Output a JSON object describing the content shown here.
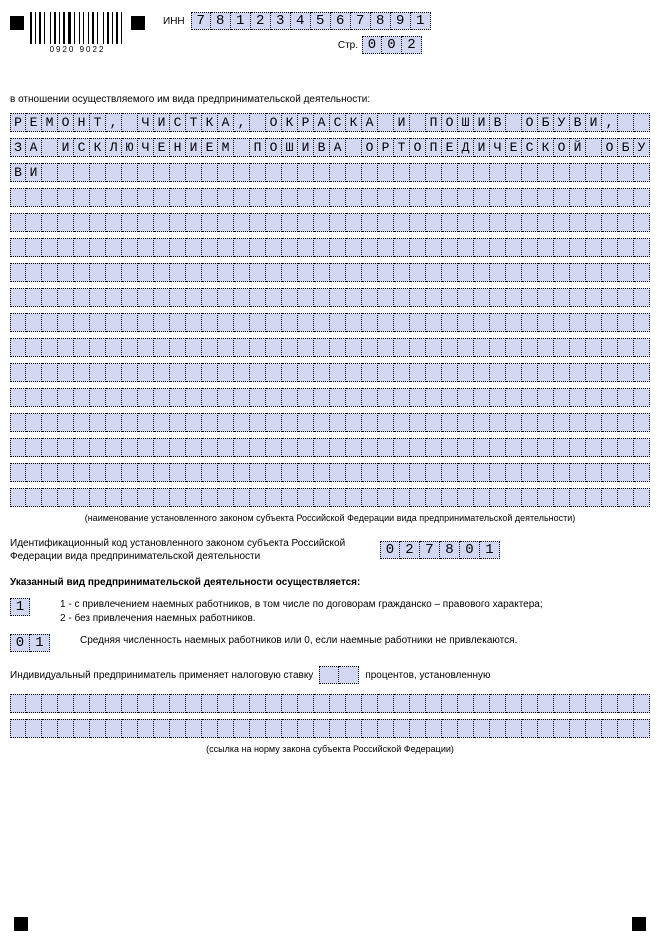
{
  "barcode_nums": "0920   9022",
  "inn_label": "ИНН",
  "inn": [
    "7",
    "8",
    "1",
    "2",
    "3",
    "4",
    "5",
    "6",
    "7",
    "8",
    "9",
    "1"
  ],
  "page_label": "Стр.",
  "page_num": [
    "0",
    "0",
    "2"
  ],
  "activity_intro": "в отношении осуществляемого им вида предпринимательской деятельности:",
  "activity_rows_count": 16,
  "activity_cols": 40,
  "activity_text": "РЕМОНТ, ЧИСТКА, ОКРАСКА И ПОШИВ ОБУВИ,  ЗА ИСКЛЮЧЕНИЕМ ПОШИВА ОРТОПЕДИЧЕСКОЙ ОБУВИ",
  "activity_caption": "(наименование установленного законом субъекта Российской Федерации вида предпринимательской деятельности)",
  "id_label": "Идентификационный код установленного законом субъекта Российской Федерации вида предпринимательской деятельности",
  "id_code": [
    "0",
    "2",
    "7",
    "8",
    "0",
    "1"
  ],
  "carried_heading": "Указанный вид предпринимательской деятельности осуществляется:",
  "opt1_value": [
    "1"
  ],
  "opt1_text": "1 - с привлечением наемных работников, в том числе по договорам гражданско – правового характера;\n2 - без привлечения наемных работников.",
  "opt2_value": [
    "0",
    "1"
  ],
  "opt2_text": "Средняя численность наемных работников или 0, если наемные работники не привлекаются.",
  "tax_pre": "Индивидуальный предприниматель применяет налоговую ставку",
  "tax_value": [
    "",
    ""
  ],
  "tax_post": "процентов, установленную",
  "law_rows_count": 2,
  "law_caption": "(ссылка на норму закона субъекта Российской Федерации)",
  "style": {
    "cell_bg": "#d2d7f2",
    "cell_border": "#000000",
    "text_color": "#000000"
  }
}
